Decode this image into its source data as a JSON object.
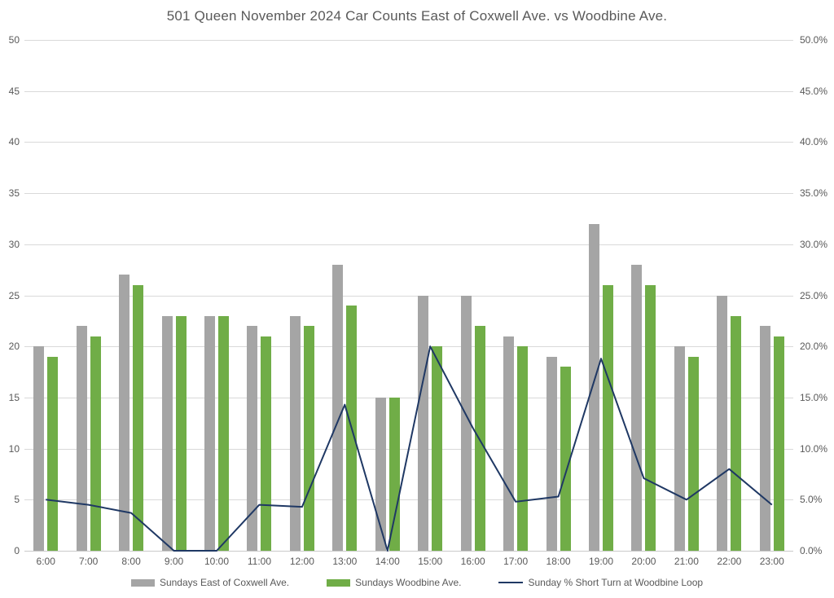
{
  "title": "501 Queen November 2024 Car Counts East of Coxwell Ave. vs Woodbine Ave.",
  "colors": {
    "bar_east_coxwell": "#a5a5a5",
    "bar_woodbine": "#70ad47",
    "line_short_turn": "#1f3864",
    "gridline": "#d9d9d9",
    "axis_text": "#595959",
    "title_text": "#595959",
    "background": "#ffffff"
  },
  "axes": {
    "left_ticks": [
      "0",
      "5",
      "10",
      "15",
      "20",
      "25",
      "30",
      "35",
      "40",
      "45",
      "50"
    ],
    "right_ticks": [
      "0.0%",
      "5.0%",
      "10.0%",
      "15.0%",
      "20.0%",
      "25.0%",
      "30.0%",
      "35.0%",
      "40.0%",
      "45.0%",
      "50.0%"
    ]
  },
  "legend": [
    {
      "label": "Sundays East of Coxwell Ave.",
      "marker": "bar",
      "color_key": "bar_east_coxwell"
    },
    {
      "label": "Sundays Woodbine Ave.",
      "marker": "bar",
      "color_key": "bar_woodbine"
    },
    {
      "label": "Sunday % Short Turn at Woodbine Loop",
      "marker": "line",
      "color_key": "line_short_turn"
    }
  ],
  "chart_data": {
    "type": "bar",
    "subtype": "combo-bar-line",
    "title": "501 Queen November 2024 Car Counts East of Coxwell Ave. vs Woodbine Ave.",
    "categories": [
      "6:00",
      "7:00",
      "8:00",
      "9:00",
      "10:00",
      "11:00",
      "12:00",
      "13:00",
      "14:00",
      "15:00",
      "16:00",
      "17:00",
      "18:00",
      "19:00",
      "20:00",
      "21:00",
      "22:00",
      "23:00"
    ],
    "series": [
      {
        "name": "Sundays East of Coxwell Ave.",
        "type": "bar",
        "axis": "left",
        "values": [
          20,
          22,
          27,
          23,
          23,
          22,
          23,
          28,
          15,
          25,
          25,
          21,
          19,
          32,
          28,
          20,
          25,
          22
        ]
      },
      {
        "name": "Sundays Woodbine Ave.",
        "type": "bar",
        "axis": "left",
        "values": [
          19,
          21,
          26,
          23,
          23,
          21,
          22,
          24,
          15,
          20,
          22,
          20,
          18,
          26,
          26,
          19,
          23,
          21
        ]
      },
      {
        "name": "Sunday % Short Turn at Woodbine Loop",
        "type": "line",
        "axis": "right",
        "values": [
          5.0,
          4.5,
          3.7,
          0.0,
          0.0,
          4.5,
          4.3,
          14.3,
          0.0,
          20.0,
          12.0,
          4.8,
          5.3,
          18.8,
          7.1,
          5.0,
          8.0,
          4.5
        ]
      }
    ],
    "left_axis": {
      "min": 0,
      "max": 50,
      "step": 5
    },
    "right_axis": {
      "min": 0,
      "max": 50,
      "step": 5,
      "format": "percent"
    },
    "grid": "horizontal",
    "legend_position": "bottom",
    "xlabel": "",
    "ylabel": ""
  }
}
